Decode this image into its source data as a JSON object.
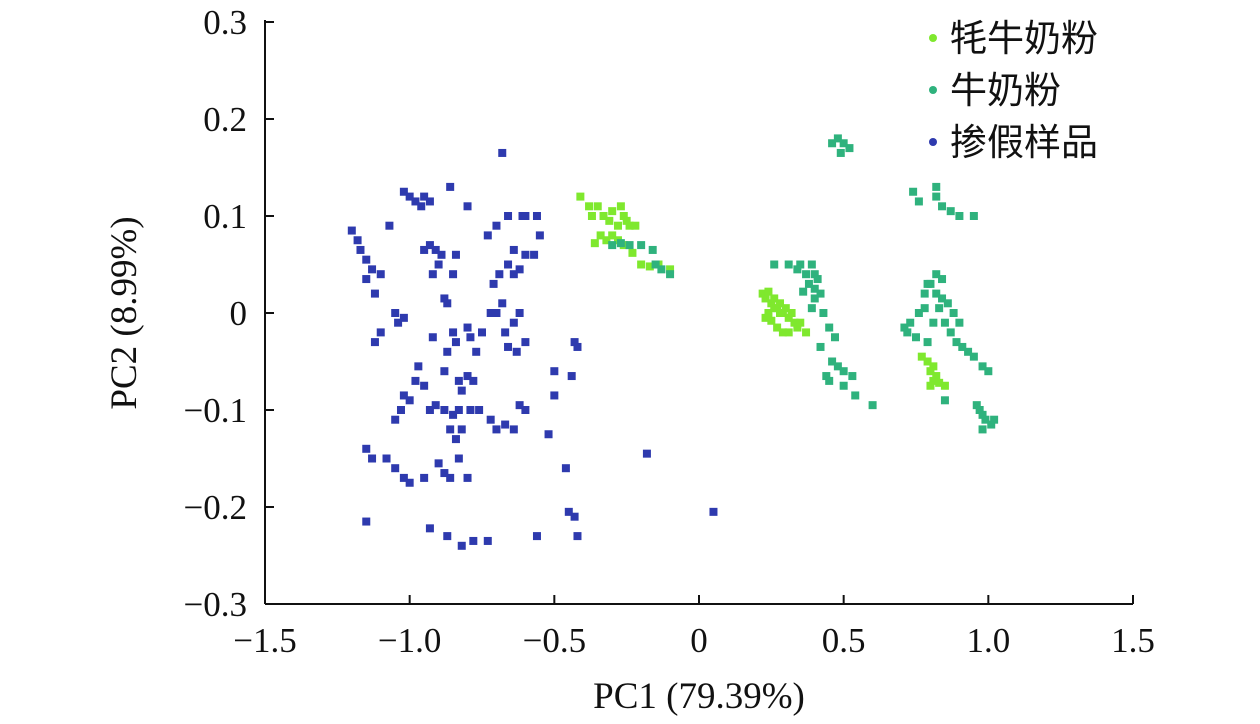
{
  "chart_data": {
    "type": "scatter",
    "xlabel": "PC1 (79.39%)",
    "ylabel": "PC2 (8.99%)",
    "xlim": [
      -1.5,
      1.5
    ],
    "ylim": [
      -0.3,
      0.3
    ],
    "x_ticks": [
      -1.5,
      -1.0,
      -0.5,
      0,
      0.5,
      1.0,
      1.5
    ],
    "x_tick_labels": [
      "−1.5",
      "−1.0",
      "−0.5",
      "0",
      "0.5",
      "1.0",
      "1.5"
    ],
    "y_ticks": [
      0.3,
      0.2,
      0.1,
      0,
      -0.1,
      -0.2,
      -0.3
    ],
    "y_tick_labels": [
      "0.3",
      "0.2",
      "0.1",
      "0",
      "−0.1",
      "−0.2",
      "−0.3"
    ],
    "grid": false,
    "legend_position": "top-right",
    "series": [
      {
        "name": "牦牛奶粉",
        "color": "#7FE82E",
        "points": [
          [
            -0.41,
            0.12
          ],
          [
            -0.38,
            0.11
          ],
          [
            -0.37,
            0.1
          ],
          [
            -0.35,
            0.11
          ],
          [
            -0.33,
            0.1
          ],
          [
            -0.31,
            0.095
          ],
          [
            -0.3,
            0.105
          ],
          [
            -0.28,
            0.09
          ],
          [
            -0.27,
            0.11
          ],
          [
            -0.26,
            0.1
          ],
          [
            -0.25,
            0.095
          ],
          [
            -0.24,
            0.09
          ],
          [
            -0.22,
            0.09
          ],
          [
            -0.34,
            0.08
          ],
          [
            -0.32,
            0.075
          ],
          [
            -0.3,
            0.08
          ],
          [
            -0.28,
            0.075
          ],
          [
            -0.26,
            0.07
          ],
          [
            -0.23,
            0.062
          ],
          [
            -0.2,
            0.05
          ],
          [
            -0.17,
            0.048
          ],
          [
            -0.14,
            0.05
          ],
          [
            -0.1,
            0.045
          ],
          [
            -0.36,
            0.072
          ],
          [
            0.22,
            0.02
          ],
          [
            0.23,
            0.015
          ],
          [
            0.24,
            0.022
          ],
          [
            0.25,
            0.01
          ],
          [
            0.26,
            0.015
          ],
          [
            0.27,
            0.005
          ],
          [
            0.28,
            0.01
          ],
          [
            0.29,
            0.0
          ],
          [
            0.3,
            0.005
          ],
          [
            0.31,
            -0.005
          ],
          [
            0.32,
            0.0
          ],
          [
            0.33,
            -0.01
          ],
          [
            0.34,
            -0.015
          ],
          [
            0.25,
            -0.008
          ],
          [
            0.27,
            -0.015
          ],
          [
            0.29,
            -0.02
          ],
          [
            0.31,
            -0.02
          ],
          [
            0.23,
            -0.005
          ],
          [
            0.26,
            0.005
          ],
          [
            0.28,
            0.0
          ],
          [
            0.35,
            -0.01
          ],
          [
            0.37,
            -0.02
          ],
          [
            0.24,
            0.0
          ],
          [
            0.77,
            -0.045
          ],
          [
            0.79,
            -0.05
          ],
          [
            0.81,
            -0.055
          ],
          [
            0.8,
            -0.06
          ],
          [
            0.82,
            -0.065
          ],
          [
            0.81,
            -0.07
          ],
          [
            0.8,
            -0.075
          ],
          [
            0.83,
            -0.072
          ],
          [
            0.85,
            -0.075
          ]
        ]
      },
      {
        "name": "牛奶粉",
        "color": "#2FB27D",
        "points": [
          [
            -0.3,
            0.07
          ],
          [
            -0.27,
            0.072
          ],
          [
            -0.24,
            0.07
          ],
          [
            -0.2,
            0.07
          ],
          [
            -0.15,
            0.05
          ],
          [
            -0.13,
            0.045
          ],
          [
            -0.1,
            0.04
          ],
          [
            -0.16,
            0.065
          ],
          [
            0.46,
            0.175
          ],
          [
            0.48,
            0.18
          ],
          [
            0.5,
            0.175
          ],
          [
            0.52,
            0.17
          ],
          [
            0.49,
            0.165
          ],
          [
            0.74,
            0.125
          ],
          [
            0.76,
            0.115
          ],
          [
            0.82,
            0.12
          ],
          [
            0.84,
            0.11
          ],
          [
            0.87,
            0.105
          ],
          [
            0.9,
            0.1
          ],
          [
            0.95,
            0.1
          ],
          [
            0.82,
            0.13
          ],
          [
            0.26,
            0.05
          ],
          [
            0.31,
            0.05
          ],
          [
            0.35,
            0.05
          ],
          [
            0.37,
            0.04
          ],
          [
            0.34,
            0.045
          ],
          [
            0.39,
            0.05
          ],
          [
            0.4,
            0.04
          ],
          [
            0.41,
            0.035
          ],
          [
            0.38,
            0.03
          ],
          [
            0.4,
            0.025
          ],
          [
            0.42,
            0.02
          ],
          [
            0.4,
            0.015
          ],
          [
            0.36,
            0.022
          ],
          [
            0.39,
            0.005
          ],
          [
            0.43,
            0.0
          ],
          [
            0.45,
            -0.015
          ],
          [
            0.47,
            -0.025
          ],
          [
            0.42,
            -0.035
          ],
          [
            0.48,
            -0.055
          ],
          [
            0.5,
            -0.06
          ],
          [
            0.53,
            -0.065
          ],
          [
            0.46,
            -0.05
          ],
          [
            0.44,
            -0.065
          ],
          [
            0.5,
            -0.075
          ],
          [
            0.54,
            -0.085
          ],
          [
            0.6,
            -0.095
          ],
          [
            0.45,
            -0.07
          ],
          [
            0.8,
            0.03
          ],
          [
            0.78,
            0.02
          ],
          [
            0.82,
            0.02
          ],
          [
            0.84,
            0.015
          ],
          [
            0.86,
            0.01
          ],
          [
            0.88,
            0.0
          ],
          [
            0.9,
            -0.01
          ],
          [
            0.83,
            0.005
          ],
          [
            0.85,
            -0.01
          ],
          [
            0.87,
            -0.02
          ],
          [
            0.89,
            -0.03
          ],
          [
            0.91,
            -0.035
          ],
          [
            0.78,
            0.005
          ],
          [
            0.76,
            0.0
          ],
          [
            0.73,
            -0.01
          ],
          [
            0.72,
            -0.02
          ],
          [
            0.71,
            -0.015
          ],
          [
            0.75,
            -0.025
          ],
          [
            0.79,
            -0.03
          ],
          [
            0.81,
            -0.01
          ],
          [
            0.93,
            -0.04
          ],
          [
            0.95,
            -0.045
          ],
          [
            0.82,
            0.04
          ],
          [
            0.84,
            0.035
          ],
          [
            0.79,
            0.03
          ],
          [
            0.98,
            -0.055
          ],
          [
            1.0,
            -0.06
          ],
          [
            0.96,
            -0.095
          ],
          [
            0.97,
            -0.1
          ],
          [
            0.98,
            -0.105
          ],
          [
            0.99,
            -0.11
          ],
          [
            1.01,
            -0.115
          ],
          [
            1.02,
            -0.11
          ],
          [
            0.98,
            -0.12
          ],
          [
            0.85,
            -0.09
          ]
        ]
      },
      {
        "name": "掺假样品",
        "color": "#2E3AAE",
        "points": [
          [
            -0.68,
            0.165
          ],
          [
            -1.02,
            0.125
          ],
          [
            -1.0,
            0.12
          ],
          [
            -0.98,
            0.115
          ],
          [
            -0.96,
            0.11
          ],
          [
            -0.95,
            0.12
          ],
          [
            -0.93,
            0.115
          ],
          [
            -0.86,
            0.13
          ],
          [
            -0.8,
            0.11
          ],
          [
            -0.73,
            0.08
          ],
          [
            -0.7,
            0.09
          ],
          [
            -0.66,
            0.1
          ],
          [
            -0.61,
            0.1
          ],
          [
            -0.6,
            0.1
          ],
          [
            -0.56,
            0.1
          ],
          [
            -0.55,
            0.08
          ],
          [
            -0.57,
            0.06
          ],
          [
            -0.6,
            0.06
          ],
          [
            -0.64,
            0.065
          ],
          [
            -0.66,
            0.05
          ],
          [
            -0.64,
            0.04
          ],
          [
            -0.69,
            0.04
          ],
          [
            -0.71,
            0.03
          ],
          [
            -0.62,
            0.045
          ],
          [
            -0.68,
            0.01
          ],
          [
            -0.7,
            0.0
          ],
          [
            -0.62,
            0.0
          ],
          [
            -0.64,
            -0.01
          ],
          [
            -0.67,
            -0.02
          ],
          [
            -0.6,
            -0.03
          ],
          [
            -0.66,
            -0.035
          ],
          [
            -0.63,
            -0.04
          ],
          [
            -1.2,
            0.085
          ],
          [
            -1.18,
            0.075
          ],
          [
            -1.17,
            0.065
          ],
          [
            -1.15,
            0.055
          ],
          [
            -1.13,
            0.045
          ],
          [
            -1.15,
            0.035
          ],
          [
            -1.12,
            0.02
          ],
          [
            -1.1,
            0.04
          ],
          [
            -1.07,
            0.09
          ],
          [
            -1.05,
            0.0
          ],
          [
            -1.04,
            -0.01
          ],
          [
            -1.02,
            -0.005
          ],
          [
            -1.1,
            -0.02
          ],
          [
            -1.12,
            -0.03
          ],
          [
            -0.95,
            0.065
          ],
          [
            -0.93,
            0.07
          ],
          [
            -0.91,
            0.065
          ],
          [
            -0.9,
            0.05
          ],
          [
            -0.92,
            0.04
          ],
          [
            -0.89,
            0.06
          ],
          [
            -0.84,
            0.06
          ],
          [
            -0.85,
            0.04
          ],
          [
            -0.87,
            0.01
          ],
          [
            -0.88,
            0.015
          ],
          [
            -0.85,
            -0.02
          ],
          [
            -0.84,
            -0.03
          ],
          [
            -0.87,
            -0.04
          ],
          [
            -0.92,
            -0.025
          ],
          [
            -0.88,
            -0.06
          ],
          [
            -0.8,
            -0.015
          ],
          [
            -0.79,
            -0.025
          ],
          [
            -0.75,
            -0.02
          ],
          [
            -0.77,
            -0.04
          ],
          [
            -0.72,
            0.0
          ],
          [
            -0.97,
            -0.055
          ],
          [
            -0.98,
            -0.07
          ],
          [
            -0.95,
            -0.075
          ],
          [
            -1.02,
            -0.085
          ],
          [
            -1.0,
            -0.09
          ],
          [
            -1.03,
            -0.1
          ],
          [
            -1.05,
            -0.11
          ],
          [
            -0.93,
            -0.1
          ],
          [
            -0.91,
            -0.095
          ],
          [
            -0.88,
            -0.1
          ],
          [
            -0.85,
            -0.105
          ],
          [
            -0.83,
            -0.1
          ],
          [
            -0.86,
            -0.12
          ],
          [
            -0.84,
            -0.13
          ],
          [
            -0.82,
            -0.12
          ],
          [
            -0.79,
            -0.1
          ],
          [
            -0.76,
            -0.1
          ],
          [
            -0.72,
            -0.11
          ],
          [
            -0.7,
            -0.12
          ],
          [
            -0.67,
            -0.115
          ],
          [
            -0.64,
            -0.12
          ],
          [
            -0.62,
            -0.095
          ],
          [
            -0.6,
            -0.1
          ],
          [
            -0.83,
            -0.07
          ],
          [
            -0.8,
            -0.065
          ],
          [
            -0.78,
            -0.07
          ],
          [
            -0.82,
            -0.08
          ],
          [
            -1.15,
            -0.14
          ],
          [
            -1.13,
            -0.15
          ],
          [
            -1.08,
            -0.15
          ],
          [
            -1.05,
            -0.16
          ],
          [
            -1.02,
            -0.17
          ],
          [
            -1.0,
            -0.175
          ],
          [
            -0.95,
            -0.17
          ],
          [
            -0.9,
            -0.155
          ],
          [
            -0.88,
            -0.165
          ],
          [
            -0.86,
            -0.17
          ],
          [
            -0.8,
            -0.17
          ],
          [
            -0.83,
            -0.15
          ],
          [
            -1.15,
            -0.215
          ],
          [
            -0.93,
            -0.222
          ],
          [
            -0.87,
            -0.23
          ],
          [
            -0.82,
            -0.24
          ],
          [
            -0.78,
            -0.235
          ],
          [
            -0.73,
            -0.235
          ],
          [
            -0.56,
            -0.23
          ],
          [
            -0.45,
            -0.205
          ],
          [
            -0.43,
            -0.21
          ],
          [
            -0.42,
            -0.23
          ],
          [
            -0.46,
            -0.16
          ],
          [
            -0.5,
            -0.085
          ],
          [
            -0.52,
            -0.125
          ],
          [
            -0.44,
            -0.065
          ],
          [
            -0.42,
            -0.035
          ],
          [
            -0.43,
            -0.03
          ],
          [
            -0.5,
            -0.06
          ],
          [
            -0.18,
            -0.145
          ],
          [
            0.05,
            -0.205
          ]
        ]
      }
    ]
  }
}
